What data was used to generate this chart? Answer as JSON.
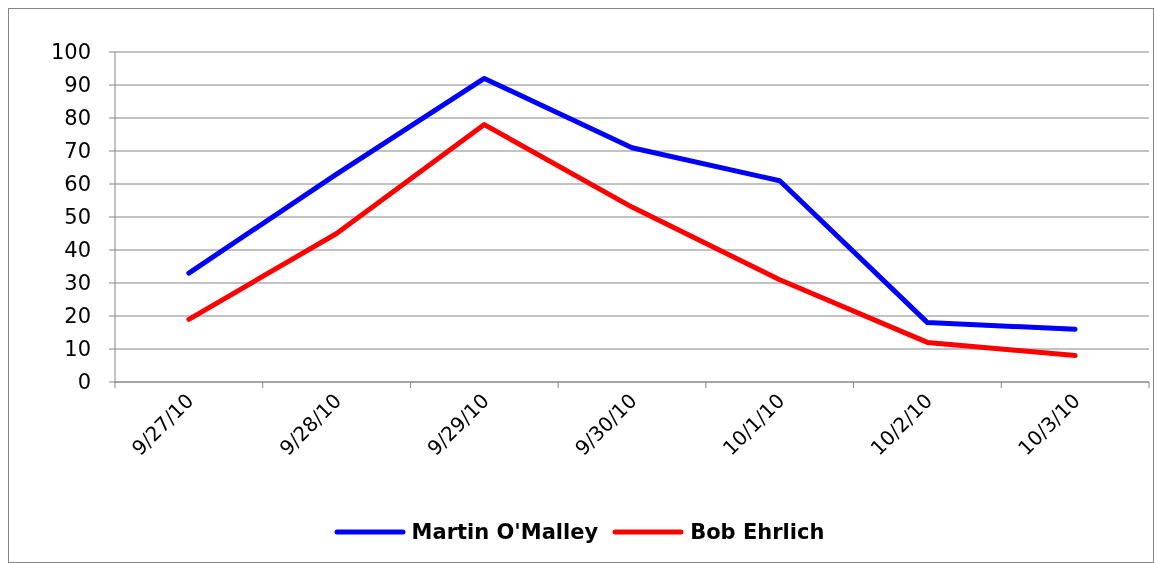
{
  "chart_data": {
    "type": "line",
    "categories": [
      "9/27/10",
      "9/28/10",
      "9/29/10",
      "9/30/10",
      "10/1/10",
      "10/2/10",
      "10/3/10"
    ],
    "series": [
      {
        "name": "Martin O'Malley",
        "color": "#0000ff",
        "values": [
          33,
          63,
          92,
          71,
          61,
          18,
          16
        ]
      },
      {
        "name": "Bob Ehrlich",
        "color": "#ff0000",
        "values": [
          19,
          45,
          78,
          53,
          31,
          12,
          8
        ]
      }
    ],
    "ylim": [
      0,
      100
    ],
    "yticks": [
      0,
      10,
      20,
      30,
      40,
      50,
      60,
      70,
      80,
      90,
      100
    ],
    "grid": "y",
    "legend": "bottom",
    "marker": "none",
    "line_style": "solid"
  }
}
